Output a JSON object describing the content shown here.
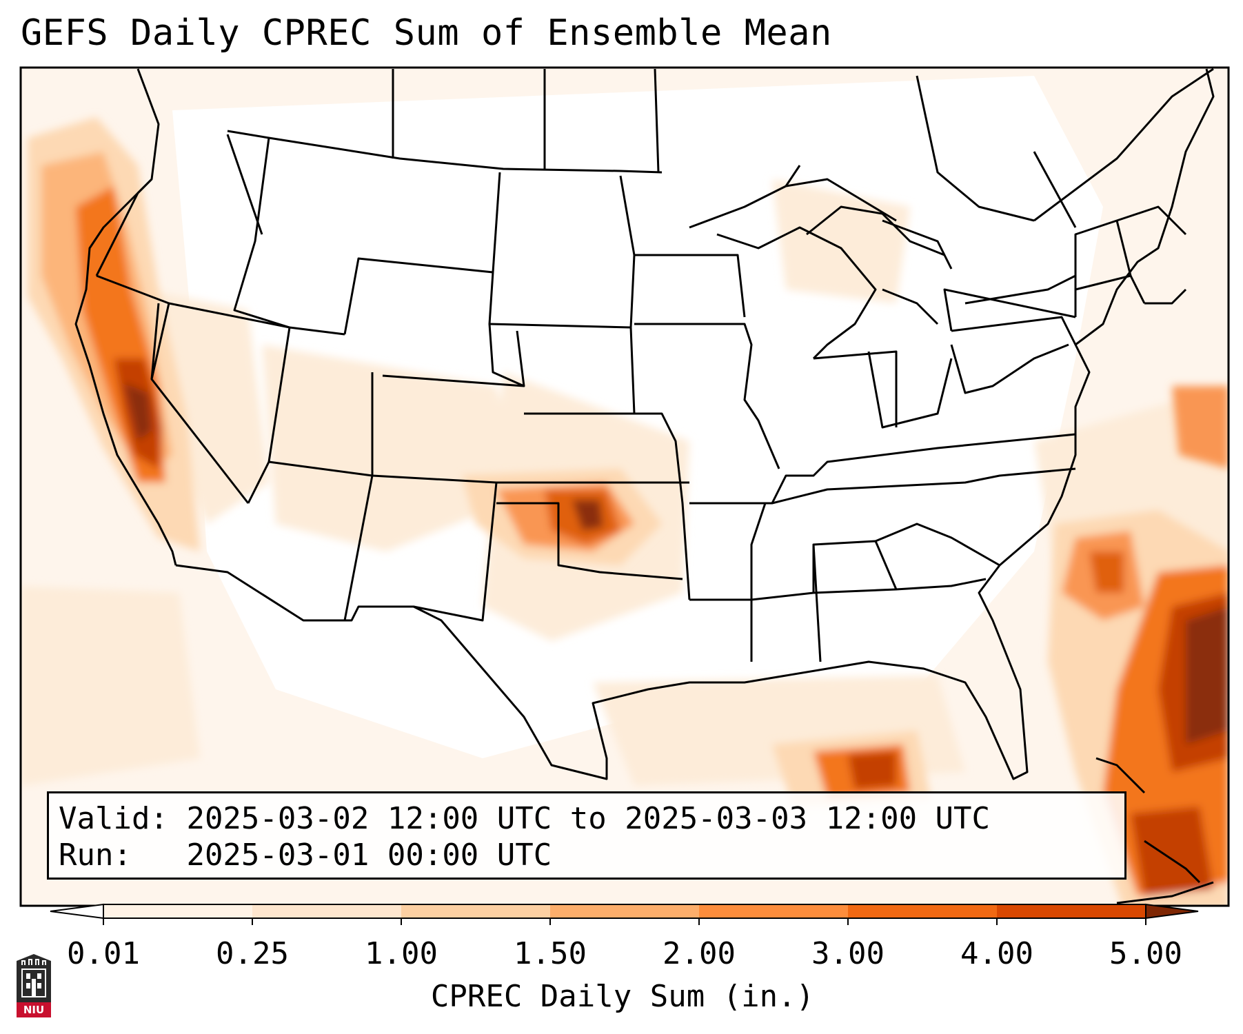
{
  "title": "GEFS Daily CPREC Sum of Ensemble Mean",
  "info": {
    "valid_label": "Valid:",
    "valid_value": "2025-03-02 12:00 UTC to 2025-03-03 12:00 UTC",
    "run_label": "Run:",
    "run_value": "2025-03-01 00:00 UTC"
  },
  "colorbar": {
    "label": "CPREC Daily Sum (in.)",
    "ticks": [
      "0.01",
      "0.25",
      "1.00",
      "1.50",
      "2.00",
      "3.00",
      "4.00",
      "5.00"
    ],
    "colors": [
      "#ffffff",
      "#fee6ce",
      "#fdd0a2",
      "#fdae6b",
      "#fd8d3c",
      "#f16913",
      "#d94801",
      "#a63603",
      "#7f2704"
    ],
    "extend": "both"
  },
  "logo": {
    "text": "NIU",
    "color": "#c8102e"
  },
  "map": {
    "region": "Continental United States",
    "precip_colors": {
      "light": "#fef0e2",
      "low": "#fdd9b4",
      "mid": "#fdae6b",
      "high": "#f3761d",
      "peak": "#c44103",
      "max": "#8b2e07"
    }
  }
}
